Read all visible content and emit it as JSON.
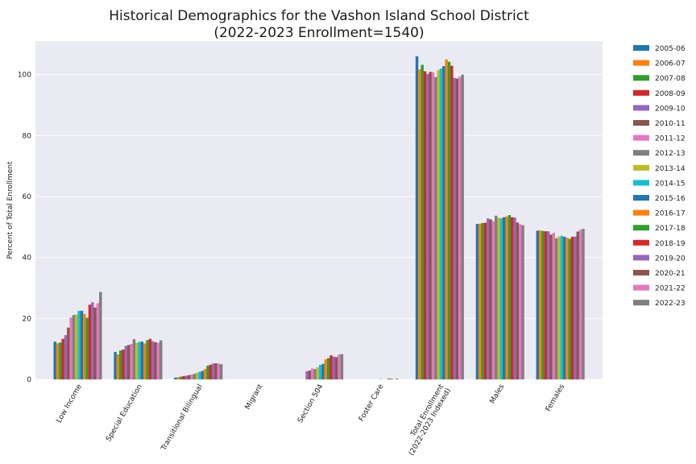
{
  "chart_data": {
    "type": "bar",
    "title": "Historical Demographics for the Vashon Island School District",
    "subtitle": "(2022-2023 Enrollment=1540)",
    "xlabel": "",
    "ylabel": "Percent of Total Enrollment",
    "ylim": [
      0,
      111
    ],
    "yticks": [
      0,
      20,
      40,
      60,
      80,
      100
    ],
    "grid": true,
    "legend_position": "outside-right",
    "categories": [
      [
        "Low Income"
      ],
      [
        "Special Education"
      ],
      [
        "Transitional Bilingual"
      ],
      [
        "Migrant"
      ],
      [
        "Section 504"
      ],
      [
        "Foster Care"
      ],
      [
        "Total Enrollment",
        "(2022-2023 Indexed)"
      ],
      [
        "Males"
      ],
      [
        "Females"
      ]
    ],
    "series": [
      {
        "name": "2005-06",
        "color": "#1f77b4",
        "values": [
          12.4,
          9.0,
          0.6,
          0,
          0,
          0,
          106.0,
          51.0,
          48.8
        ]
      },
      {
        "name": "2006-07",
        "color": "#ff7f0e",
        "values": [
          11.8,
          8.2,
          0.7,
          0,
          0,
          0,
          101.7,
          51.1,
          48.9
        ]
      },
      {
        "name": "2007-08",
        "color": "#2ca02c",
        "values": [
          12.1,
          9.5,
          0.9,
          0,
          0,
          0,
          103.2,
          51.3,
          48.7
        ]
      },
      {
        "name": "2008-09",
        "color": "#d62728",
        "values": [
          13.3,
          9.8,
          1.1,
          0,
          0,
          0,
          101.1,
          51.4,
          48.6
        ]
      },
      {
        "name": "2009-10",
        "color": "#9467bd",
        "values": [
          14.5,
          11.0,
          1.2,
          0,
          2.7,
          0,
          100.2,
          52.8,
          48.6
        ]
      },
      {
        "name": "2010-11",
        "color": "#8c564b",
        "values": [
          17.0,
          11.3,
          1.4,
          0,
          2.9,
          0,
          100.9,
          52.5,
          47.5
        ]
      },
      {
        "name": "2011-12",
        "color": "#e377c2",
        "values": [
          20.3,
          11.6,
          1.6,
          0,
          3.6,
          0,
          100.8,
          51.9,
          48.1
        ]
      },
      {
        "name": "2012-13",
        "color": "#7f7f7f",
        "values": [
          21.1,
          13.2,
          1.8,
          0,
          3.4,
          0,
          99.2,
          53.7,
          46.3
        ]
      },
      {
        "name": "2013-14",
        "color": "#bcbd22",
        "values": [
          21.3,
          12.0,
          2.2,
          0,
          4.0,
          0,
          101.5,
          53.0,
          46.9
        ]
      },
      {
        "name": "2014-15",
        "color": "#17becf",
        "values": [
          22.5,
          12.3,
          2.5,
          0,
          4.8,
          0.1,
          102.0,
          52.9,
          47.1
        ]
      },
      {
        "name": "2015-16",
        "color": "#1f77b4",
        "values": [
          22.5,
          12.4,
          2.8,
          0,
          5.1,
          0,
          102.8,
          53.2,
          46.8
        ]
      },
      {
        "name": "2016-17",
        "color": "#ff7f0e",
        "values": [
          21.5,
          11.8,
          3.4,
          0,
          6.6,
          0,
          105.0,
          53.5,
          46.5
        ]
      },
      {
        "name": "2017-18",
        "color": "#2ca02c",
        "values": [
          20.2,
          12.9,
          4.5,
          0,
          7.0,
          0.3,
          104.2,
          53.9,
          46.1
        ]
      },
      {
        "name": "2018-19",
        "color": "#d62728",
        "values": [
          24.5,
          13.3,
          4.8,
          0,
          7.9,
          0.2,
          102.9,
          53.2,
          46.8
        ]
      },
      {
        "name": "2019-20",
        "color": "#9467bd",
        "values": [
          25.3,
          12.5,
          5.2,
          0,
          7.5,
          0,
          98.9,
          53.1,
          46.9
        ]
      },
      {
        "name": "2020-21",
        "color": "#8c564b",
        "values": [
          23.6,
          12.2,
          5.3,
          0,
          7.3,
          0.2,
          98.7,
          51.5,
          48.5
        ]
      },
      {
        "name": "2021-22",
        "color": "#e377c2",
        "values": [
          25.0,
          12.0,
          5.2,
          0,
          8.2,
          0,
          99.3,
          50.9,
          49.1
        ]
      },
      {
        "name": "2022-23",
        "color": "#7f7f7f",
        "values": [
          28.7,
          12.8,
          5.0,
          0,
          8.3,
          0,
          100.0,
          50.6,
          49.4
        ]
      }
    ]
  },
  "colors": {
    "plot_background": "#eaeaf2",
    "gridline": "#ffffff"
  }
}
